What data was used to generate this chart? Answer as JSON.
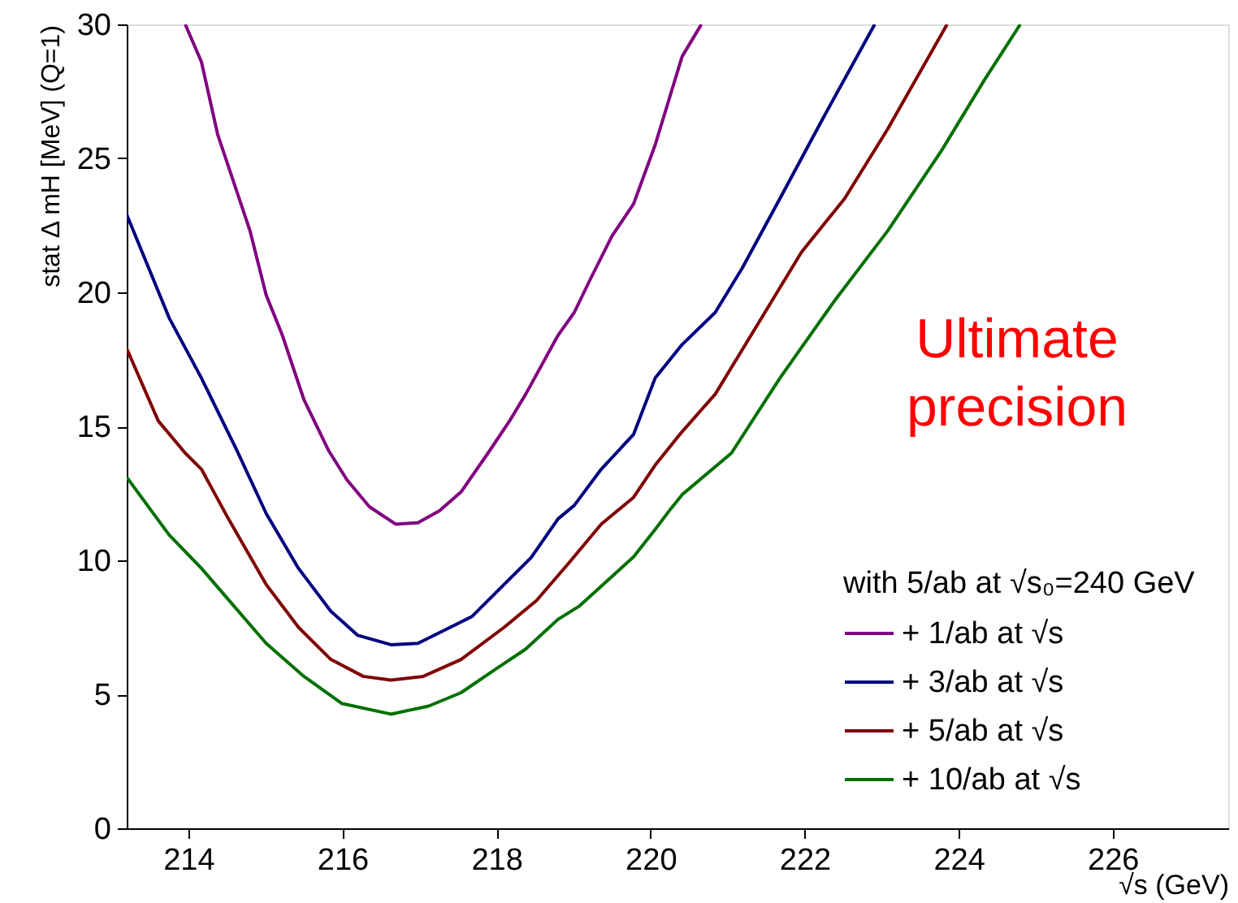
{
  "chart_data": {
    "type": "line",
    "xlabel": "√s (GeV)",
    "ylabel": "stat Δ mH [MeV]  (Q=1)",
    "legend_title": "with 5/ab at √s₀=240 GeV",
    "annotations": [
      "Ultimate precision"
    ],
    "xlim": [
      213.2,
      227.5
    ],
    "xticks": [
      214,
      216,
      218,
      220,
      222,
      224,
      226
    ],
    "ylim": [
      0,
      30
    ],
    "yticks": [
      0,
      5,
      10,
      15,
      20,
      25,
      30
    ],
    "grid": false,
    "legend": "bottom right",
    "marker": "none",
    "line_style": "solid",
    "series": [
      {
        "name": "+ 1/ab at √s",
        "color": "#800080",
        "x": [
          213.96,
          214.17,
          214.38,
          214.8,
          215.01,
          215.22,
          215.5,
          215.82,
          216.06,
          216.35,
          216.69,
          216.98,
          217.26,
          217.54,
          217.89,
          218.17,
          218.38,
          218.8,
          219.01,
          219.22,
          219.5,
          219.78,
          220.06,
          220.41,
          220.66
        ],
        "values": [
          30,
          28.6,
          25.9,
          22.3,
          19.9,
          18.4,
          16.0,
          14.1,
          13.0,
          12.0,
          11.35,
          11.4,
          11.85,
          12.55,
          14.0,
          15.2,
          16.2,
          18.4,
          19.25,
          20.5,
          22.1,
          23.3,
          25.5,
          28.8,
          30
        ]
      },
      {
        "name": "+ 3/ab at √s",
        "color": "#000080",
        "x": [
          213.2,
          213.75,
          214.17,
          214.63,
          215.01,
          215.43,
          215.85,
          216.2,
          216.63,
          216.98,
          217.4,
          217.68,
          218.1,
          218.45,
          218.8,
          219.01,
          219.36,
          219.78,
          220.06,
          220.41,
          220.84,
          221.19,
          221.68,
          222.24,
          222.91
        ],
        "values": [
          22.9,
          19.05,
          16.8,
          14.1,
          11.75,
          9.7,
          8.1,
          7.2,
          6.85,
          6.9,
          7.5,
          7.9,
          9.1,
          10.1,
          11.55,
          12.05,
          13.4,
          14.7,
          16.8,
          18.05,
          19.25,
          20.9,
          23.5,
          26.5,
          30
        ]
      },
      {
        "name": "+ 5/ab at √s",
        "color": "#800000",
        "x": [
          213.2,
          213.61,
          213.96,
          214.17,
          214.52,
          215.01,
          215.43,
          215.85,
          216.27,
          216.63,
          217.05,
          217.54,
          218.1,
          218.52,
          218.94,
          219.36,
          219.78,
          220.06,
          220.41,
          220.84,
          221.4,
          221.96,
          222.52,
          223.08,
          223.85
        ],
        "values": [
          17.9,
          15.2,
          14.0,
          13.4,
          11.55,
          9.1,
          7.5,
          6.3,
          5.67,
          5.53,
          5.67,
          6.3,
          7.5,
          8.5,
          9.9,
          11.35,
          12.35,
          13.55,
          14.8,
          16.2,
          18.85,
          21.5,
          23.5,
          26.1,
          30
        ]
      },
      {
        "name": "+ 10/ab at √s",
        "color": "#007000",
        "x": [
          213.2,
          213.75,
          214.17,
          214.59,
          215.01,
          215.5,
          215.99,
          216.63,
          217.12,
          217.54,
          217.96,
          218.38,
          218.8,
          219.08,
          219.78,
          220.06,
          220.27,
          220.41,
          221.05,
          221.68,
          222.38,
          223.08,
          223.78,
          224.34,
          224.8
        ],
        "values": [
          13.1,
          10.95,
          9.7,
          8.3,
          6.9,
          5.67,
          4.66,
          4.26,
          4.56,
          5.06,
          5.88,
          6.69,
          7.8,
          8.3,
          10.13,
          11.15,
          11.95,
          12.45,
          14.0,
          16.8,
          19.65,
          22.3,
          25.3,
          27.95,
          30
        ]
      }
    ]
  }
}
